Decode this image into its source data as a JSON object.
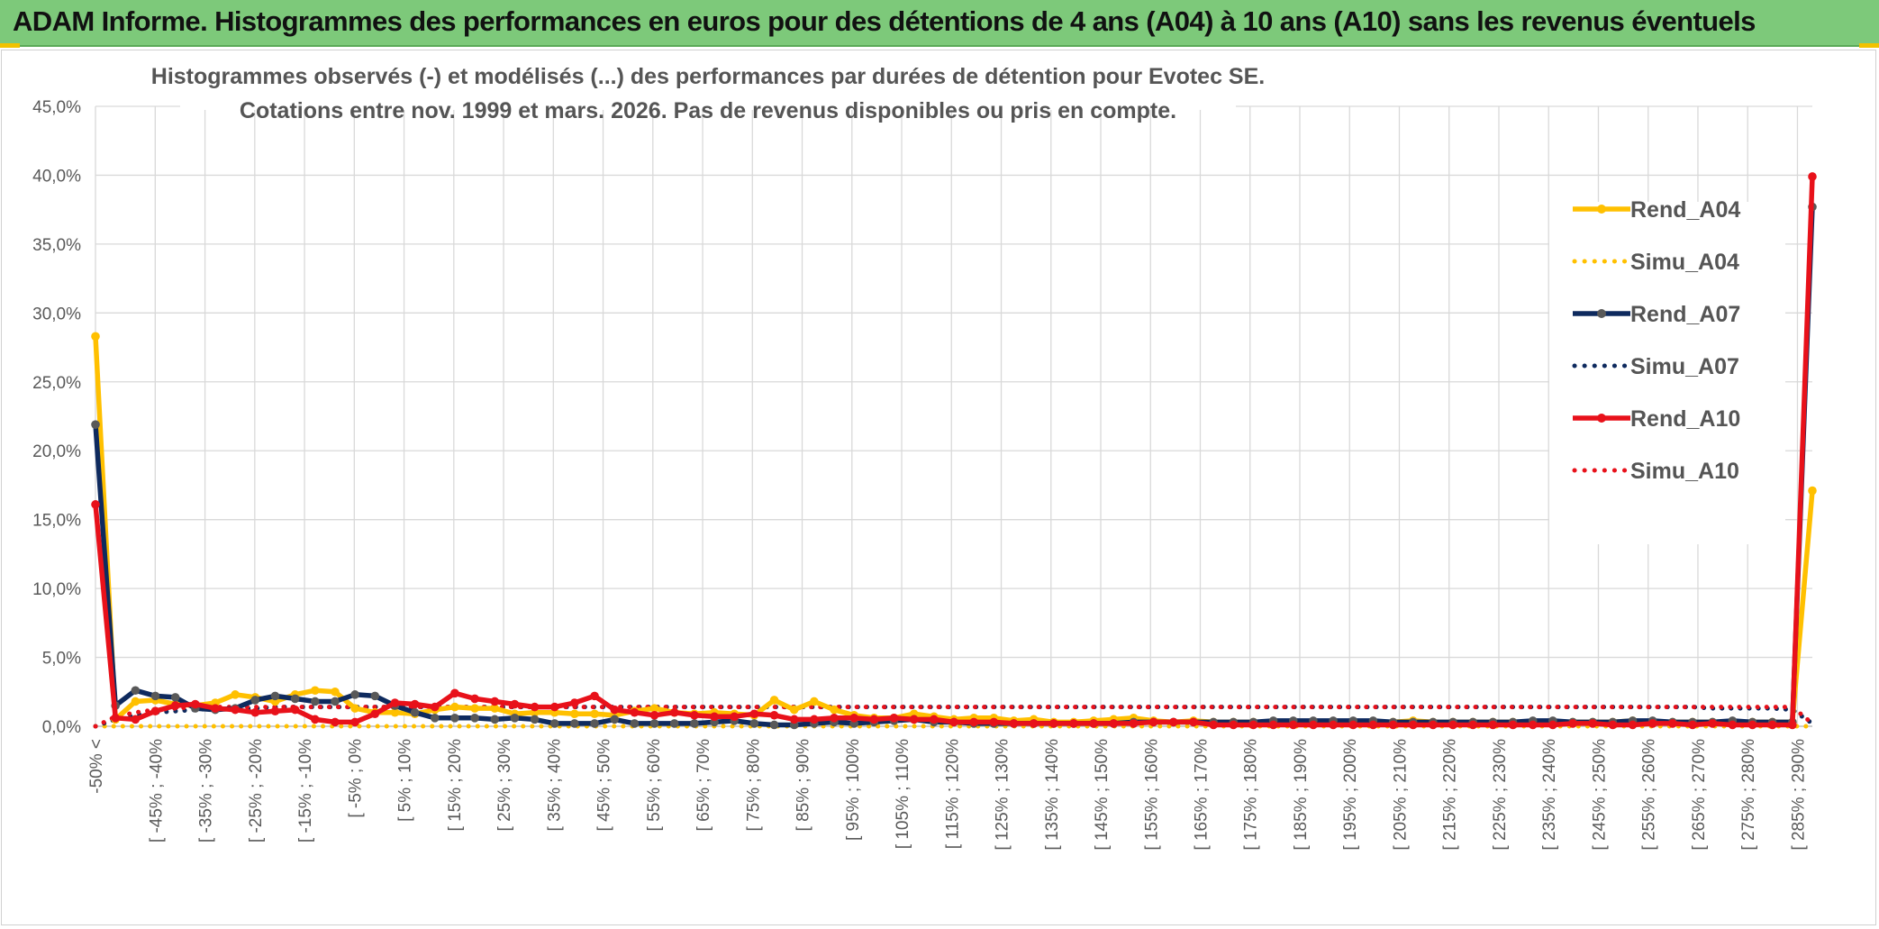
{
  "header": {
    "title": "ADAM Informe. Histogrammes des performances en euros pour des détentions de 4 ans (A04) à 10 ans (A10) sans les revenus éventuels"
  },
  "chart_data": {
    "type": "line",
    "title_line1": "Histogrammes observés (-) et modélisés (...) des performances par durées de détention pour Evotec SE.",
    "title_line2": "Cotations entre nov. 1999 et mars. 2026. Pas de revenus disponibles ou pris en compte.",
    "ylim": [
      0,
      45
    ],
    "ytick_labels": [
      "0,0%",
      "5,0%",
      "10,0%",
      "15,0%",
      "20,0%",
      "25,0%",
      "30,0%",
      "35,0%",
      "40,0%",
      "45,0%"
    ],
    "xtick_labels": [
      "-50% <",
      "[ -45% ; -40%",
      "[ -35% ; -30%",
      "[ -25% ; -20%",
      "[ -15% ; -10%",
      "[ -5% ; 0%",
      "[ 5% ; 10%",
      "[ 15% ; 20%",
      "[ 25% ; 30%",
      "[ 35% ; 40%",
      "[ 45% ; 50%",
      "[ 55% ; 60%",
      "[ 65% ; 70%",
      "[ 75% ; 80%",
      "[ 85% ; 90%",
      "[ 95% ; 100%",
      "[ 105% ; 110%",
      "[ 115% ; 120%",
      "[ 125% ; 130%",
      "[ 135% ; 140%",
      "[ 145% ; 150%",
      "[ 155% ; 160%",
      "[ 165% ; 170%",
      "[ 175% ; 180%",
      "[ 185% ; 190%",
      "[ 195% ; 200%",
      "[ 205% ; 210%",
      "[ 215% ; 220%",
      "[ 225% ; 230%",
      "[ 235% ; 240%",
      "[ 245% ; 250%",
      "[ 255% ; 260%",
      "[ 265% ; 270%",
      "[ 275% ; 280%",
      "[ 285% ; 290%"
    ],
    "grid": true,
    "legend_position": "right",
    "series": [
      {
        "name": "Rend_A04",
        "color": "#ffc000",
        "style": "solid",
        "values": [
          28.3,
          0.5,
          1.8,
          1.9,
          1.6,
          1.5,
          1.7,
          2.3,
          2.1,
          1.8,
          2.3,
          2.6,
          2.5,
          1.3,
          1.0,
          1.0,
          0.9,
          1.2,
          1.4,
          1.3,
          1.3,
          0.9,
          1.0,
          1.0,
          0.9,
          0.9,
          0.8,
          1.1,
          1.3,
          1.0,
          0.9,
          1.0,
          0.9,
          0.8,
          1.9,
          1.2,
          1.8,
          1.2,
          0.8,
          0.6,
          0.6,
          0.9,
          0.7,
          0.5,
          0.6,
          0.6,
          0.4,
          0.5,
          0.3,
          0.3,
          0.4,
          0.5,
          0.6,
          0.4,
          0.3,
          0.4,
          0.3,
          0.3,
          0.3,
          0.3,
          0.3,
          0.3,
          0.3,
          0.3,
          0.3,
          0.3,
          0.4,
          0.3,
          0.3,
          0.3,
          0.3,
          0.3,
          0.3,
          0.3,
          0.3,
          0.3,
          0.3,
          0.4,
          0.3,
          0.3,
          0.3,
          0.3,
          0.3,
          0.3,
          0.3,
          0.3,
          17.1
        ]
      },
      {
        "name": "Simu_A04",
        "color": "#ffc000",
        "style": "dotted",
        "values": [
          0.0,
          0.0,
          0.0,
          0.0,
          0.0,
          0.0,
          0.0,
          0.0,
          0.0,
          0.0,
          0.0,
          0.0,
          0.0,
          0.0,
          0.0,
          0.0,
          0.0,
          0.0,
          0.0,
          0.0,
          0.0,
          0.0,
          0.0,
          0.0,
          0.0,
          0.0,
          0.0,
          0.0,
          0.0,
          0.0,
          0.0,
          0.0,
          0.0,
          0.0,
          0.0,
          0.0,
          0.0,
          0.0,
          0.0,
          0.0,
          0.0,
          0.0,
          0.0,
          0.0,
          0.0,
          0.0,
          0.0,
          0.0,
          0.0,
          0.0,
          0.0,
          0.0,
          0.0,
          0.0,
          0.0,
          0.0,
          0.0,
          0.0,
          0.0,
          0.0,
          0.0,
          0.0,
          0.0,
          0.0,
          0.0,
          0.0,
          0.0,
          0.0,
          0.0,
          0.0,
          0.0,
          0.0,
          0.0,
          0.0,
          0.0,
          0.0,
          0.0,
          0.0,
          0.0,
          0.0,
          0.0,
          0.0,
          0.0,
          0.0,
          0.0,
          0.0,
          0.0
        ]
      },
      {
        "name": "Rend_A07",
        "color": "#0e2a5e",
        "style": "solid",
        "values": [
          21.9,
          1.5,
          2.6,
          2.2,
          2.1,
          1.3,
          1.2,
          1.3,
          1.9,
          2.2,
          2.0,
          1.8,
          1.8,
          2.3,
          2.2,
          1.5,
          1.0,
          0.6,
          0.6,
          0.6,
          0.5,
          0.6,
          0.5,
          0.2,
          0.2,
          0.2,
          0.5,
          0.2,
          0.2,
          0.2,
          0.2,
          0.3,
          0.4,
          0.2,
          0.1,
          0.1,
          0.2,
          0.3,
          0.2,
          0.3,
          0.4,
          0.5,
          0.3,
          0.3,
          0.2,
          0.2,
          0.2,
          0.2,
          0.2,
          0.2,
          0.2,
          0.2,
          0.3,
          0.3,
          0.3,
          0.3,
          0.3,
          0.3,
          0.3,
          0.4,
          0.4,
          0.4,
          0.4,
          0.4,
          0.4,
          0.3,
          0.3,
          0.3,
          0.3,
          0.3,
          0.3,
          0.3,
          0.4,
          0.4,
          0.3,
          0.3,
          0.3,
          0.4,
          0.4,
          0.3,
          0.3,
          0.3,
          0.4,
          0.3,
          0.3,
          0.3,
          37.7
        ]
      },
      {
        "name": "Simu_A07",
        "color": "#0e2a5e",
        "style": "dotted",
        "values": [
          0.0,
          0.5,
          0.8,
          1.0,
          1.1,
          1.2,
          1.3,
          1.3,
          1.3,
          1.4,
          1.4,
          1.4,
          1.4,
          1.4,
          1.4,
          1.4,
          1.4,
          1.4,
          1.4,
          1.4,
          1.4,
          1.4,
          1.4,
          1.4,
          1.4,
          1.4,
          1.4,
          1.4,
          1.4,
          1.4,
          1.4,
          1.4,
          1.4,
          1.4,
          1.4,
          1.4,
          1.4,
          1.4,
          1.4,
          1.4,
          1.4,
          1.4,
          1.4,
          1.4,
          1.4,
          1.4,
          1.4,
          1.4,
          1.4,
          1.4,
          1.4,
          1.4,
          1.4,
          1.4,
          1.4,
          1.4,
          1.4,
          1.4,
          1.4,
          1.4,
          1.4,
          1.4,
          1.4,
          1.4,
          1.4,
          1.4,
          1.4,
          1.4,
          1.4,
          1.4,
          1.4,
          1.4,
          1.4,
          1.4,
          1.4,
          1.4,
          1.4,
          1.4,
          1.4,
          1.4,
          1.4,
          1.3,
          1.3,
          1.3,
          1.3,
          1.2,
          0.2
        ]
      },
      {
        "name": "Rend_A10",
        "color": "#e8111a",
        "style": "solid",
        "values": [
          16.1,
          0.6,
          0.5,
          1.1,
          1.5,
          1.6,
          1.3,
          1.2,
          1.0,
          1.1,
          1.2,
          0.5,
          0.3,
          0.3,
          0.9,
          1.7,
          1.6,
          1.4,
          2.4,
          2.0,
          1.8,
          1.6,
          1.4,
          1.4,
          1.7,
          2.2,
          1.2,
          1.0,
          0.8,
          1.0,
          0.8,
          0.7,
          0.7,
          0.9,
          0.8,
          0.5,
          0.5,
          0.6,
          0.6,
          0.5,
          0.6,
          0.5,
          0.5,
          0.3,
          0.3,
          0.3,
          0.2,
          0.2,
          0.2,
          0.2,
          0.2,
          0.2,
          0.2,
          0.3,
          0.3,
          0.3,
          0.1,
          0.1,
          0.1,
          0.1,
          0.1,
          0.1,
          0.1,
          0.1,
          0.1,
          0.1,
          0.1,
          0.1,
          0.1,
          0.1,
          0.1,
          0.1,
          0.1,
          0.1,
          0.2,
          0.2,
          0.1,
          0.1,
          0.2,
          0.2,
          0.1,
          0.2,
          0.1,
          0.1,
          0.1,
          0.1,
          39.9
        ]
      },
      {
        "name": "Simu_A10",
        "color": "#e8111a",
        "style": "dotted",
        "values": [
          0.0,
          0.7,
          1.0,
          1.2,
          1.3,
          1.4,
          1.4,
          1.4,
          1.4,
          1.4,
          1.4,
          1.4,
          1.4,
          1.4,
          1.4,
          1.4,
          1.4,
          1.4,
          1.4,
          1.4,
          1.4,
          1.4,
          1.4,
          1.4,
          1.4,
          1.4,
          1.4,
          1.4,
          1.4,
          1.4,
          1.4,
          1.4,
          1.4,
          1.4,
          1.4,
          1.4,
          1.4,
          1.4,
          1.4,
          1.4,
          1.4,
          1.4,
          1.4,
          1.4,
          1.4,
          1.4,
          1.4,
          1.4,
          1.4,
          1.4,
          1.4,
          1.4,
          1.4,
          1.4,
          1.4,
          1.4,
          1.4,
          1.4,
          1.4,
          1.4,
          1.4,
          1.4,
          1.4,
          1.4,
          1.4,
          1.4,
          1.4,
          1.4,
          1.4,
          1.4,
          1.4,
          1.4,
          1.4,
          1.4,
          1.4,
          1.4,
          1.4,
          1.4,
          1.4,
          1.4,
          1.4,
          1.4,
          1.4,
          1.4,
          1.4,
          1.4,
          0.2
        ]
      }
    ]
  }
}
